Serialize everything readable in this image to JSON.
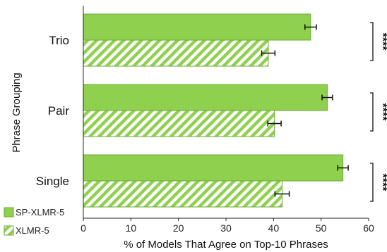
{
  "chart_data": {
    "type": "bar",
    "orientation": "horizontal",
    "categories": [
      "Trio",
      "Pair",
      "Single"
    ],
    "series": [
      {
        "name": "SP-XLMR-5",
        "values": [
          47.8,
          51.3,
          54.6
        ],
        "errors": [
          1.2,
          1.1,
          1.1
        ],
        "color": "#8fd14f",
        "pattern": "solid"
      },
      {
        "name": "XLMR-5",
        "values": [
          38.9,
          40.2,
          41.8
        ],
        "errors": [
          1.4,
          1.4,
          1.5
        ],
        "color": "#8fd14f",
        "pattern": "hatched"
      }
    ],
    "significance": [
      "****",
      "****",
      "****"
    ],
    "xlabel": "% of Models That Agree on Top-10 Phrases",
    "ylabel": "Phrase Grouping",
    "xlim": [
      0,
      60
    ],
    "xticks": [
      "0",
      "10",
      "20",
      "30",
      "40",
      "50",
      "60"
    ],
    "legend_position": "bottom-left"
  }
}
